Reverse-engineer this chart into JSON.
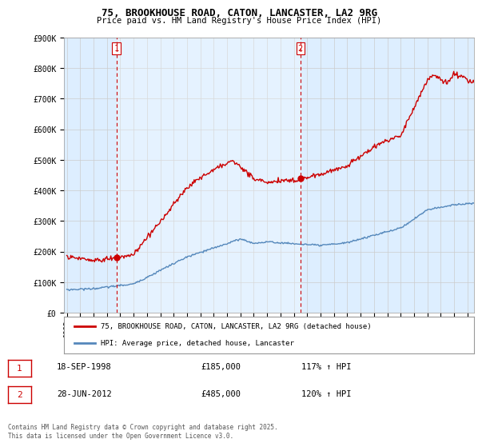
{
  "title": "75, BROOKHOUSE ROAD, CATON, LANCASTER, LA2 9RG",
  "subtitle": "Price paid vs. HM Land Registry's House Price Index (HPI)",
  "ylim": [
    0,
    900000
  ],
  "yticks": [
    0,
    100000,
    200000,
    300000,
    400000,
    500000,
    600000,
    700000,
    800000,
    900000
  ],
  "ytick_labels": [
    "£0",
    "£100K",
    "£200K",
    "£300K",
    "£400K",
    "£500K",
    "£600K",
    "£700K",
    "£800K",
    "£900K"
  ],
  "xmin_year": 1995,
  "xmax_year": 2025,
  "xticks": [
    1995,
    1996,
    1997,
    1998,
    1999,
    2000,
    2001,
    2002,
    2003,
    2004,
    2005,
    2006,
    2007,
    2008,
    2009,
    2010,
    2011,
    2012,
    2013,
    2014,
    2015,
    2016,
    2017,
    2018,
    2019,
    2020,
    2021,
    2022,
    2023,
    2024,
    2025
  ],
  "marker1_year": 1998.72,
  "marker2_year": 2012.49,
  "legend_line1": "75, BROOKHOUSE ROAD, CATON, LANCASTER, LA2 9RG (detached house)",
  "legend_line2": "HPI: Average price, detached house, Lancaster",
  "table_row1_num": "1",
  "table_row1_date": "18-SEP-1998",
  "table_row1_price": "£185,000",
  "table_row1_hpi": "117% ↑ HPI",
  "table_row2_num": "2",
  "table_row2_date": "28-JUN-2012",
  "table_row2_price": "£485,000",
  "table_row2_hpi": "120% ↑ HPI",
  "footer": "Contains HM Land Registry data © Crown copyright and database right 2025.\nThis data is licensed under the Open Government Licence v3.0.",
  "line_color_red": "#cc0000",
  "line_color_blue": "#5588bb",
  "bg_color": "#ffffff",
  "plot_bg_color": "#ddeeff",
  "grid_color": "#cccccc"
}
